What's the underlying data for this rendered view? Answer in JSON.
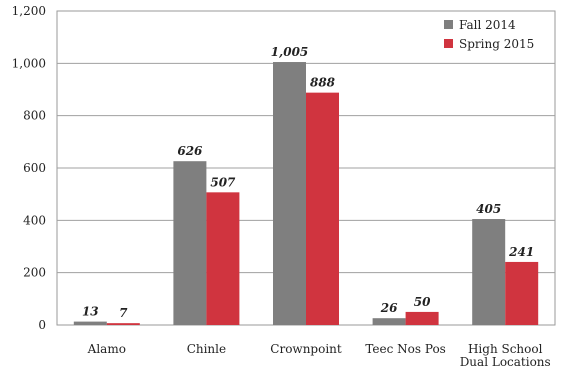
{
  "chart_data": {
    "type": "bar",
    "title": "",
    "xlabel": "",
    "ylabel": "",
    "ylim": [
      0,
      1200
    ],
    "y_ticks": [
      "0",
      "200",
      "400",
      "600",
      "800",
      "1,000",
      "1,200"
    ],
    "y_tick_values": [
      0,
      200,
      400,
      600,
      800,
      1000,
      1200
    ],
    "grid": true,
    "legend_position": "top-right",
    "categories": [
      [
        "Alamo"
      ],
      [
        "Chinle"
      ],
      [
        "Crownpoint"
      ],
      [
        "Teec Nos Pos"
      ],
      [
        "High School",
        "Dual Locations"
      ]
    ],
    "series": [
      {
        "name": "Fall 2014",
        "color": "#7f7f7f",
        "values": [
          13,
          626,
          1005,
          26,
          405
        ],
        "labels": [
          "13",
          "626",
          "1,005",
          "26",
          "405"
        ]
      },
      {
        "name": "Spring 2015",
        "color": "#d0343f",
        "values": [
          7,
          507,
          888,
          50,
          241
        ],
        "labels": [
          "7",
          "507",
          "888",
          "50",
          "241"
        ]
      }
    ]
  }
}
